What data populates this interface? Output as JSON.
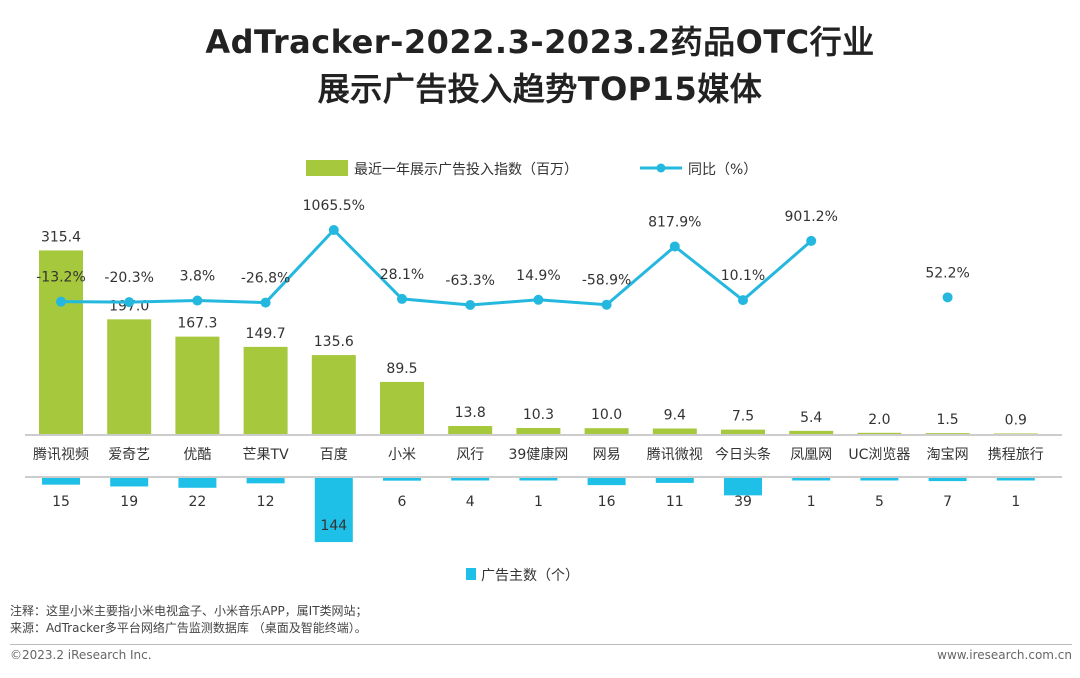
{
  "title": {
    "line1": "AdTracker-2022.3-2023.2药品OTC行业",
    "line2": "展示广告投入趋势TOP15媒体"
  },
  "colors": {
    "bar": "#a6c83c",
    "line": "#25b8df",
    "advertiser_bar": "#1fc0e8"
  },
  "chart_data": {
    "type": "bar+line",
    "categories": [
      "腾讯视频",
      "爱奇艺",
      "优酷",
      "芒果TV",
      "百度",
      "小米",
      "风行",
      "39健康网",
      "网易",
      "腾讯微视",
      "今日头条",
      "凤凰网",
      "UC浏览器",
      "淘宝网",
      "携程旅行"
    ],
    "series": [
      {
        "name": "最近一年展示广告投入指数（百万）",
        "type": "bar",
        "values": [
          315.4,
          197.0,
          167.3,
          149.7,
          135.6,
          89.5,
          13.8,
          10.3,
          10.0,
          9.4,
          7.5,
          5.4,
          2.0,
          1.5,
          0.9
        ],
        "labels": [
          "315.4",
          "197.0",
          "167.3",
          "149.7",
          "135.6",
          "89.5",
          "13.8",
          "10.3",
          "10.0",
          "9.4",
          "7.5",
          "5.4",
          "2.0",
          "1.5",
          "0.9"
        ]
      },
      {
        "name": "同比（%）",
        "type": "line",
        "values": [
          -13.2,
          -20.3,
          3.8,
          -26.8,
          1065.5,
          28.1,
          -63.3,
          14.9,
          -58.9,
          817.9,
          10.1,
          901.2,
          null,
          52.2,
          null
        ],
        "labels": [
          "-13.2%",
          "-20.3%",
          "3.8%",
          "-26.8%",
          "1065.5%",
          "28.1%",
          "-63.3%",
          "14.9%",
          "-58.9%",
          "817.9%",
          "10.1%",
          "901.2%",
          "",
          "52.2%",
          ""
        ]
      },
      {
        "name": "广告主数（个）",
        "type": "bar",
        "direction": "down",
        "values": [
          15,
          19,
          22,
          12,
          144,
          6,
          4,
          1,
          16,
          11,
          39,
          1,
          5,
          7,
          1
        ],
        "labels": [
          "15",
          "19",
          "22",
          "12",
          "144",
          "6",
          "4",
          "1",
          "16",
          "11",
          "39",
          "1",
          "5",
          "7",
          "1"
        ]
      }
    ],
    "legend": {
      "top": [
        "最近一年展示广告投入指数（百万）",
        "同比（%）"
      ],
      "bottom": "广告主数（个）"
    }
  },
  "notes": {
    "note1": "注释：这里小米主要指小米电视盒子、小米音乐APP，属IT类网站；",
    "note2": "来源：AdTracker多平台网络广告监测数据库 （桌面及智能终端）。"
  },
  "footer": {
    "left": "©2023.2 iResearch Inc.",
    "right": "www.iresearch.com.cn"
  }
}
